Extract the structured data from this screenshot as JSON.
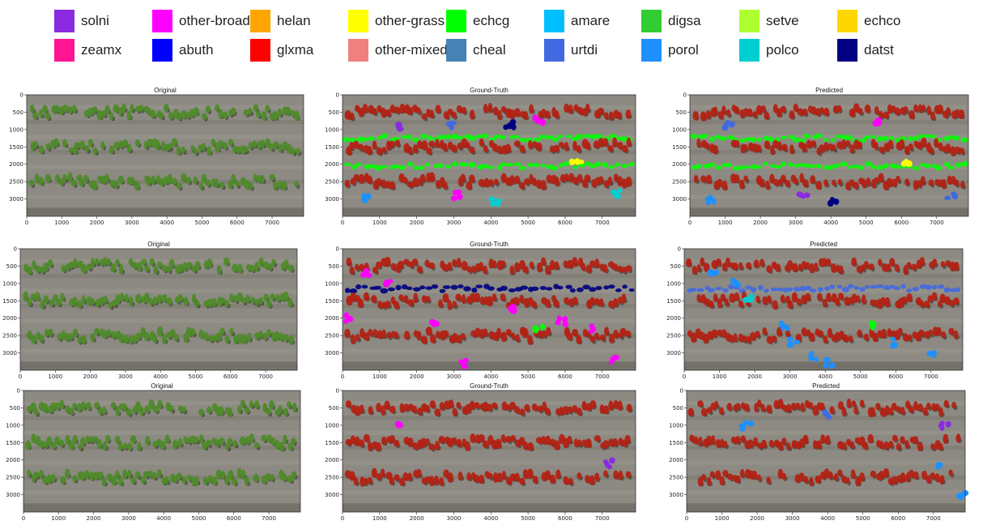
{
  "legend": [
    {
      "label": "solni",
      "color": "#8a2be2"
    },
    {
      "label": "other-broad",
      "color": "#ff00ff"
    },
    {
      "label": "helan",
      "color": "#ffa500"
    },
    {
      "label": "other-grass",
      "color": "#ffff00"
    },
    {
      "label": "echcg",
      "color": "#00ff00"
    },
    {
      "label": "amare",
      "color": "#00bfff"
    },
    {
      "label": "digsa",
      "color": "#32cd32"
    },
    {
      "label": "setve",
      "color": "#adff2f"
    },
    {
      "label": "echco",
      "color": "#ffd700"
    },
    {
      "label": "zeamx",
      "color": "#ff1493"
    },
    {
      "label": "abuth",
      "color": "#0000ff"
    },
    {
      "label": "glxma",
      "color": "#ff0000"
    },
    {
      "label": "other-mixed",
      "color": "#f08080"
    },
    {
      "label": "cheal",
      "color": "#4682b4"
    },
    {
      "label": "urtdi",
      "color": "#4169e1"
    },
    {
      "label": "porol",
      "color": "#1e90ff"
    },
    {
      "label": "polco",
      "color": "#00ced1"
    },
    {
      "label": "datst",
      "color": "#000080"
    }
  ],
  "panels": [
    {
      "title": "Original",
      "mode": "original",
      "rows": [
        500,
        1500,
        2500
      ],
      "weeds": []
    },
    {
      "title": "Ground-Truth",
      "mode": "labels",
      "rows": [
        500,
        1500,
        2500
      ],
      "weed_rows": [
        {
          "y": 1250,
          "color": "#00ff00"
        },
        {
          "y": 2050,
          "color": "#00ff00"
        }
      ],
      "weeds": [
        {
          "x": 1500,
          "y": 900,
          "color": "#8a2be2"
        },
        {
          "x": 3100,
          "y": 2900,
          "color": "#ff00ff"
        },
        {
          "x": 5300,
          "y": 750,
          "color": "#ff00ff"
        },
        {
          "x": 600,
          "y": 3000,
          "color": "#1e90ff"
        },
        {
          "x": 7400,
          "y": 2850,
          "color": "#00ced1"
        },
        {
          "x": 4100,
          "y": 3050,
          "color": "#00ced1"
        },
        {
          "x": 6300,
          "y": 2000,
          "color": "#ffff00"
        },
        {
          "x": 2900,
          "y": 850,
          "color": "#4169e1"
        },
        {
          "x": 4500,
          "y": 850,
          "color": "#000080"
        }
      ]
    },
    {
      "title": "Predicted",
      "mode": "labels",
      "rows": [
        500,
        1500,
        2500
      ],
      "weed_rows": [
        {
          "y": 1250,
          "color": "#00ff00"
        },
        {
          "y": 2050,
          "color": "#00ff00"
        }
      ],
      "weeds": [
        {
          "x": 600,
          "y": 3000,
          "color": "#1e90ff"
        },
        {
          "x": 3200,
          "y": 2950,
          "color": "#8a2be2"
        },
        {
          "x": 5300,
          "y": 800,
          "color": "#ff00ff"
        },
        {
          "x": 4100,
          "y": 3050,
          "color": "#000080"
        },
        {
          "x": 7400,
          "y": 2900,
          "color": "#4169e1"
        },
        {
          "x": 6200,
          "y": 2000,
          "color": "#ffff00"
        },
        {
          "x": 1100,
          "y": 900,
          "color": "#4169e1"
        }
      ]
    },
    {
      "title": "Original",
      "mode": "original",
      "rows": [
        500,
        1500,
        2500
      ],
      "weeds": []
    },
    {
      "title": "Ground-Truth",
      "mode": "labels",
      "rows": [
        500,
        1500,
        2500
      ],
      "weed_rows": [
        {
          "y": 1150,
          "color": "#000080"
        }
      ],
      "weeds": [
        {
          "x": 600,
          "y": 700,
          "color": "#ff00ff"
        },
        {
          "x": 1200,
          "y": 1000,
          "color": "#ff00ff"
        },
        {
          "x": 2500,
          "y": 2200,
          "color": "#ff00ff"
        },
        {
          "x": 3300,
          "y": 3300,
          "color": "#ff00ff"
        },
        {
          "x": 4500,
          "y": 1700,
          "color": "#ff00ff"
        },
        {
          "x": 5900,
          "y": 2100,
          "color": "#ff00ff"
        },
        {
          "x": 6800,
          "y": 2300,
          "color": "#ff00ff"
        },
        {
          "x": 5300,
          "y": 2300,
          "color": "#00ff00"
        },
        {
          "x": 7300,
          "y": 3200,
          "color": "#ff00ff"
        },
        {
          "x": 200,
          "y": 2000,
          "color": "#ff00ff"
        }
      ]
    },
    {
      "title": "Predicted",
      "mode": "labels",
      "rows": [
        500,
        1500,
        2500
      ],
      "weed_rows": [
        {
          "y": 1150,
          "color": "#4169e1"
        }
      ],
      "weeds": [
        {
          "x": 800,
          "y": 700,
          "color": "#1e90ff"
        },
        {
          "x": 1500,
          "y": 1000,
          "color": "#1e90ff"
        },
        {
          "x": 2800,
          "y": 2200,
          "color": "#1e90ff"
        },
        {
          "x": 3700,
          "y": 3100,
          "color": "#1e90ff"
        },
        {
          "x": 4100,
          "y": 3300,
          "color": "#1e90ff"
        },
        {
          "x": 5300,
          "y": 2200,
          "color": "#00ff00"
        },
        {
          "x": 6000,
          "y": 2700,
          "color": "#1e90ff"
        },
        {
          "x": 7000,
          "y": 3000,
          "color": "#1e90ff"
        },
        {
          "x": 3100,
          "y": 2700,
          "color": "#1e90ff"
        },
        {
          "x": 1800,
          "y": 1400,
          "color": "#00ced1"
        }
      ]
    },
    {
      "title": "Original",
      "mode": "original",
      "rows": [
        500,
        1500,
        2500
      ],
      "weeds": []
    },
    {
      "title": "Ground-Truth",
      "mode": "labels",
      "rows": [
        500,
        1500,
        2500
      ],
      "weed_rows": [],
      "weeds": [
        {
          "x": 1600,
          "y": 1000,
          "color": "#ff00ff"
        },
        {
          "x": 7200,
          "y": 2100,
          "color": "#8a2be2"
        }
      ]
    },
    {
      "title": "Predicted",
      "mode": "labels",
      "rows": [
        500,
        1500,
        2500
      ],
      "weed_rows": [],
      "weeds": [
        {
          "x": 1700,
          "y": 1000,
          "color": "#1e90ff"
        },
        {
          "x": 7200,
          "y": 2100,
          "color": "#1e90ff"
        },
        {
          "x": 7300,
          "y": 1000,
          "color": "#8a2be2"
        },
        {
          "x": 7800,
          "y": 3000,
          "color": "#1e90ff"
        },
        {
          "x": 4000,
          "y": 700,
          "color": "#4169e1"
        }
      ]
    }
  ],
  "axes": {
    "x_ticks": [
      0,
      1000,
      2000,
      3000,
      4000,
      5000,
      6000,
      7000
    ],
    "y_ticks": [
      0,
      500,
      1000,
      1500,
      2000,
      2500,
      3000
    ],
    "x_max": 7900,
    "y_max": 3500,
    "crop_color": "#4f8a2a",
    "label_crop_color": "#b22214",
    "soil_color": "#8c8a82"
  }
}
